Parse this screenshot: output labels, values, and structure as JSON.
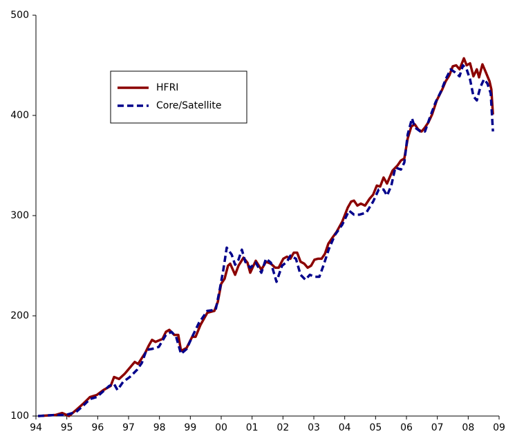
{
  "chart_data": {
    "type": "line",
    "xlim": [
      1994,
      2009
    ],
    "xticks": [
      {
        "value": 1994,
        "label": "94"
      },
      {
        "value": 1995,
        "label": "95"
      },
      {
        "value": 1996,
        "label": "96"
      },
      {
        "value": 1997,
        "label": "97"
      },
      {
        "value": 1998,
        "label": "98"
      },
      {
        "value": 1999,
        "label": "99"
      },
      {
        "value": 2000,
        "label": "00"
      },
      {
        "value": 2001,
        "label": "01"
      },
      {
        "value": 2002,
        "label": "02"
      },
      {
        "value": 2003,
        "label": "03"
      },
      {
        "value": 2004,
        "label": "04"
      },
      {
        "value": 2005,
        "label": "05"
      },
      {
        "value": 2006,
        "label": "06"
      },
      {
        "value": 2007,
        "label": "07"
      },
      {
        "value": 2008,
        "label": "08"
      },
      {
        "value": 2009,
        "label": "09"
      }
    ],
    "ylim": [
      100,
      500
    ],
    "yticks": [
      100,
      200,
      300,
      400,
      500
    ],
    "legend": "upper left",
    "series": [
      {
        "name": "HFRI",
        "color": "#8b0000",
        "dash": false,
        "x": [
          1994.07,
          1994.63,
          1994.85,
          1995.07,
          1995.3,
          1995.52,
          1995.75,
          1995.97,
          1996.19,
          1996.42,
          1996.53,
          1996.69,
          1996.87,
          1997.09,
          1997.2,
          1997.31,
          1997.54,
          1997.65,
          1997.76,
          1997.87,
          1998.1,
          1998.21,
          1998.32,
          1998.48,
          1998.61,
          1998.7,
          1998.88,
          1999.06,
          1999.17,
          1999.33,
          1999.55,
          1999.78,
          1999.89,
          2000.0,
          2000.11,
          2000.22,
          2000.29,
          2000.45,
          2000.56,
          2000.72,
          2000.85,
          2000.94,
          2001.12,
          2001.3,
          2001.45,
          2001.61,
          2001.75,
          2001.86,
          2002.01,
          2002.13,
          2002.24,
          2002.35,
          2002.46,
          2002.57,
          2002.69,
          2002.8,
          2002.91,
          2003.02,
          2003.13,
          2003.25,
          2003.36,
          2003.47,
          2003.58,
          2003.74,
          2003.92,
          2004.1,
          2004.21,
          2004.3,
          2004.41,
          2004.52,
          2004.66,
          2004.81,
          2004.92,
          2005.04,
          2005.15,
          2005.26,
          2005.37,
          2005.55,
          2005.71,
          2005.82,
          2005.93,
          2006.04,
          2006.16,
          2006.27,
          2006.38,
          2006.49,
          2006.6,
          2006.71,
          2006.83,
          2006.98,
          2007.16,
          2007.27,
          2007.39,
          2007.5,
          2007.61,
          2007.72,
          2007.86,
          2007.95,
          2008.06,
          2008.17,
          2008.28,
          2008.35,
          2008.46,
          2008.57,
          2008.69,
          2008.75,
          2008.8
        ],
        "values": [
          100,
          101,
          103,
          100,
          106,
          112,
          119,
          121,
          126,
          130,
          139,
          137,
          142,
          150,
          154,
          152,
          163,
          170,
          176,
          174,
          177,
          184,
          186,
          181,
          181,
          165,
          168,
          179,
          179,
          191,
          203,
          205,
          214,
          232,
          237,
          250,
          252,
          241,
          250,
          258,
          253,
          243,
          255,
          246,
          254,
          252,
          248,
          248,
          257,
          259,
          257,
          263,
          263,
          254,
          252,
          248,
          250,
          256,
          257,
          257,
          262,
          272,
          277,
          284,
          294,
          308,
          314,
          315,
          310,
          312,
          310,
          317,
          321,
          330,
          329,
          338,
          332,
          345,
          350,
          355,
          357,
          377,
          389,
          391,
          386,
          384,
          388,
          393,
          401,
          415,
          426,
          434,
          440,
          449,
          450,
          446,
          457,
          450,
          452,
          439,
          446,
          438,
          451,
          443,
          434,
          426,
          401
        ]
      },
      {
        "name": "Core/Satellite",
        "color": "#00008b",
        "dash": true,
        "x": [
          1994.07,
          1994.63,
          1994.96,
          1995.3,
          1995.52,
          1995.75,
          1995.97,
          1996.19,
          1996.37,
          1996.53,
          1996.64,
          1996.82,
          1997.04,
          1997.27,
          1997.43,
          1997.58,
          1997.76,
          1997.98,
          1998.21,
          1998.39,
          1998.54,
          1998.7,
          1998.88,
          1999.06,
          1999.28,
          1999.55,
          1999.82,
          1999.95,
          2000.07,
          2000.18,
          2000.34,
          2000.45,
          2000.56,
          2000.67,
          2000.78,
          2000.94,
          2001.12,
          2001.3,
          2001.45,
          2001.61,
          2001.79,
          2001.97,
          2002.13,
          2002.24,
          2002.42,
          2002.57,
          2002.73,
          2002.87,
          2003.02,
          2003.18,
          2003.31,
          2003.49,
          2003.69,
          2003.92,
          2004.14,
          2004.3,
          2004.48,
          2004.7,
          2004.92,
          2005.1,
          2005.26,
          2005.37,
          2005.51,
          2005.64,
          2005.82,
          2005.93,
          2006.04,
          2006.18,
          2006.27,
          2006.45,
          2006.6,
          2006.76,
          2006.94,
          2007.12,
          2007.27,
          2007.43,
          2007.57,
          2007.72,
          2007.83,
          2007.95,
          2008.06,
          2008.17,
          2008.28,
          2008.39,
          2008.51,
          2008.62,
          2008.73,
          2008.8
        ],
        "values": [
          100,
          101,
          101,
          104,
          110,
          117,
          119,
          125,
          130,
          132,
          126,
          134,
          139,
          146,
          153,
          166,
          167,
          169,
          181,
          184,
          179,
          162,
          167,
          179,
          193,
          205,
          206,
          226,
          246,
          268,
          261,
          251,
          256,
          266,
          254,
          248,
          253,
          243,
          257,
          253,
          234,
          250,
          254,
          260,
          257,
          241,
          236,
          241,
          239,
          239,
          250,
          267,
          281,
          291,
          305,
          301,
          301,
          303,
          314,
          326,
          326,
          320,
          330,
          348,
          346,
          353,
          381,
          397,
          388,
          384,
          384,
          398,
          413,
          424,
          436,
          446,
          443,
          439,
          450,
          446,
          436,
          419,
          415,
          428,
          436,
          432,
          422,
          384
        ]
      }
    ]
  }
}
